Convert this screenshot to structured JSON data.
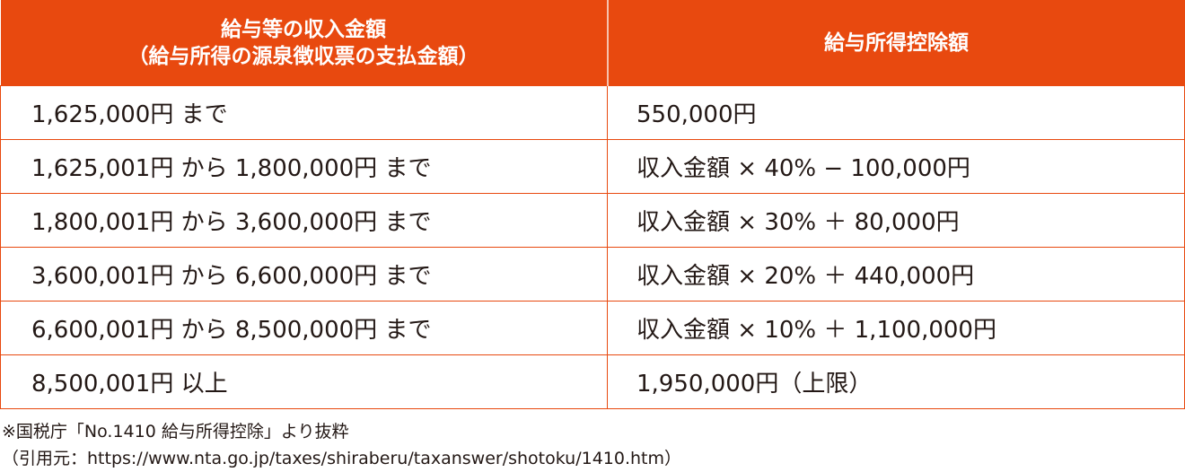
{
  "table": {
    "header": [
      [
        "給与等の収入金額",
        "（給与所得の源泉徴収票の支払金額）"
      ],
      "給与所得控除額"
    ],
    "rows": [
      [
        "1,625,000円 まで",
        "550,000円"
      ],
      [
        "1,625,001円 から 1,800,000円 まで",
        "収入金額 × 40% − 100,000円"
      ],
      [
        "1,800,001円 から 3,600,000円 まで",
        "収入金額 × 30% ＋ 80,000円"
      ],
      [
        "3,600,001円 から 6,600,000円 まで",
        "収入金額 × 20% ＋ 440,000円"
      ],
      [
        "6,600,001円 から 8,500,000円 まで",
        "収入金額 × 10% ＋ 1,100,000円"
      ],
      [
        "8,500,001円 以上",
        "1,950,000円（上限）"
      ]
    ]
  },
  "notes": [
    "※国税庁「No.1410 給与所得控除」より抜粋",
    "（引用元：https://www.nta.go.jp/taxes/shiraberu/taxanswer/shotoku/1410.htm）"
  ]
}
